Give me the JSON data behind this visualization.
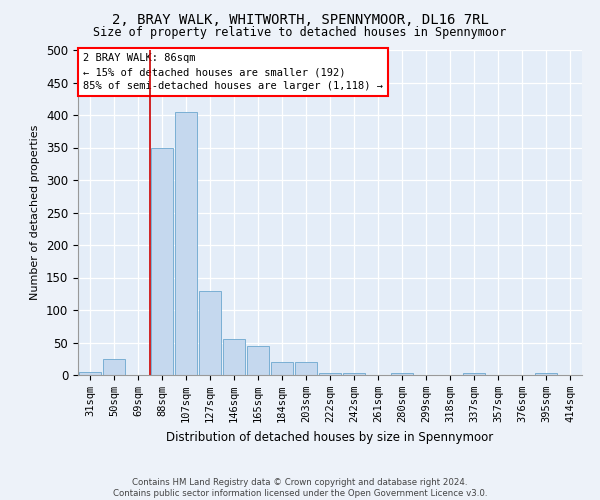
{
  "title": "2, BRAY WALK, WHITWORTH, SPENNYMOOR, DL16 7RL",
  "subtitle": "Size of property relative to detached houses in Spennymoor",
  "xlabel": "Distribution of detached houses by size in Spennymoor",
  "ylabel": "Number of detached properties",
  "bar_color": "#c5d8ee",
  "bar_edge_color": "#7aafd4",
  "categories": [
    "31sqm",
    "50sqm",
    "69sqm",
    "88sqm",
    "107sqm",
    "127sqm",
    "146sqm",
    "165sqm",
    "184sqm",
    "203sqm",
    "222sqm",
    "242sqm",
    "261sqm",
    "280sqm",
    "299sqm",
    "318sqm",
    "337sqm",
    "357sqm",
    "376sqm",
    "395sqm",
    "414sqm"
  ],
  "values": [
    5,
    25,
    0,
    350,
    405,
    130,
    55,
    45,
    20,
    20,
    3,
    3,
    0,
    3,
    0,
    0,
    3,
    0,
    0,
    3,
    0
  ],
  "ylim": [
    0,
    500
  ],
  "yticks": [
    0,
    50,
    100,
    150,
    200,
    250,
    300,
    350,
    400,
    450,
    500
  ],
  "vline_x_index": 2.5,
  "annotation_title": "2 BRAY WALK: 86sqm",
  "annotation_line1": "← 15% of detached houses are smaller (192)",
  "annotation_line2": "85% of semi-detached houses are larger (1,118) →",
  "footer_line1": "Contains HM Land Registry data © Crown copyright and database right 2024.",
  "footer_line2": "Contains public sector information licensed under the Open Government Licence v3.0.",
  "fig_facecolor": "#edf2f9",
  "ax_facecolor": "#e4edf8"
}
